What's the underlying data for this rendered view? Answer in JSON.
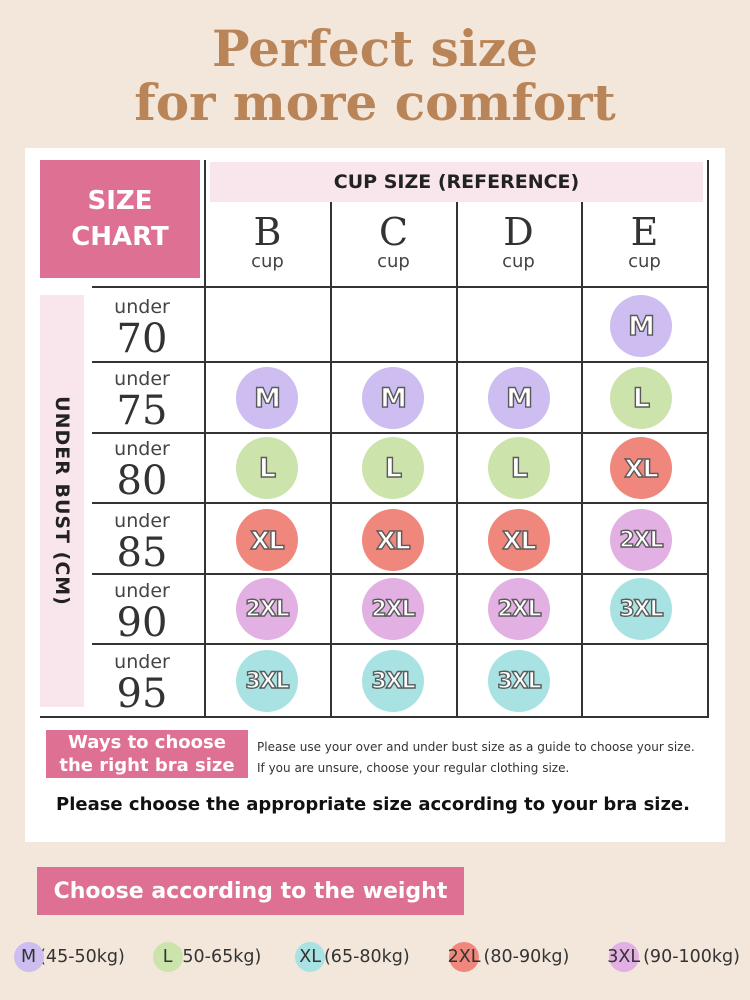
{
  "headline": {
    "line1": "Perfect size",
    "line2": "for more comfort"
  },
  "size_chart": {
    "line1": "SIZE",
    "line2": "CHART"
  },
  "cup_header": "CUP SIZE (REFERENCE)",
  "cup_word": "cup",
  "cups": [
    "B",
    "C",
    "D",
    "E"
  ],
  "side_label": "UNDER BUST (CM)",
  "under_word": "under",
  "rows": [
    {
      "band": "70",
      "sizes": [
        "",
        "",
        "",
        "M"
      ]
    },
    {
      "band": "75",
      "sizes": [
        "M",
        "M",
        "M",
        "L"
      ]
    },
    {
      "band": "80",
      "sizes": [
        "L",
        "L",
        "L",
        "XL"
      ]
    },
    {
      "band": "85",
      "sizes": [
        "XL",
        "XL",
        "XL",
        "2XL"
      ]
    },
    {
      "band": "90",
      "sizes": [
        "2XL",
        "2XL",
        "2XL",
        "3XL"
      ]
    },
    {
      "band": "95",
      "sizes": [
        "3XL",
        "3XL",
        "3XL",
        ""
      ]
    }
  ],
  "size_colors": {
    "M": "#cdbdf0",
    "L": "#cce3ab",
    "XL": "#f0877c",
    "2XL": "#e2b0e2",
    "3XL": "#a9e2e3"
  },
  "ways": {
    "title_line1": "Ways to choose",
    "title_line2": "the right bra size",
    "text_line1": "Please use your over and under bust size as a guide to choose your size.",
    "text_line2": "If you are unsure, choose your regular clothing size."
  },
  "instruction": "Please choose the appropriate size according to your bra size.",
  "weight_button": "Choose according to the weight",
  "weight_legend": [
    {
      "size": "M",
      "range": "(45-50kg)"
    },
    {
      "size": "L",
      "range": "(50-65kg)"
    },
    {
      "size": "XL",
      "range": "(65-80kg)"
    },
    {
      "size": "2XL",
      "range": "(80-90kg)"
    },
    {
      "size": "3XL",
      "range": "(90-100kg)"
    }
  ],
  "colors": {
    "background": "#f3e7dc",
    "headline": "#b98457",
    "accent": "#dd7093",
    "band": "#f9e6ec"
  }
}
